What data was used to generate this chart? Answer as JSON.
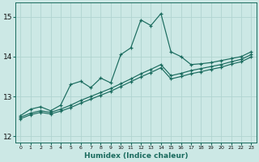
{
  "xlabel": "Humidex (Indice chaleur)",
  "xlim": [
    -0.5,
    23.5
  ],
  "ylim": [
    11.85,
    15.35
  ],
  "xticks": [
    0,
    1,
    2,
    3,
    4,
    5,
    6,
    7,
    8,
    9,
    10,
    11,
    12,
    13,
    14,
    15,
    16,
    17,
    18,
    19,
    20,
    21,
    22,
    23
  ],
  "yticks": [
    12,
    13,
    14,
    15
  ],
  "bg_color": "#cce8e5",
  "line_color": "#1a6b5e",
  "grid_color": "#b0d4d0",
  "line1_x": [
    0,
    1,
    2,
    3,
    4,
    5,
    6,
    7,
    8,
    9,
    10,
    11,
    12,
    13,
    14,
    15,
    16,
    17,
    18,
    19,
    20,
    21,
    22,
    23
  ],
  "line1_y": [
    12.52,
    12.68,
    12.74,
    12.64,
    12.78,
    13.3,
    13.38,
    13.22,
    13.46,
    13.34,
    14.05,
    14.22,
    14.92,
    14.78,
    15.08,
    14.12,
    14.0,
    13.8,
    13.82,
    13.85,
    13.9,
    13.95,
    14.0,
    14.12
  ],
  "line2_x": [
    0,
    1,
    2,
    3,
    4,
    5,
    6,
    7,
    8,
    9,
    10,
    11,
    12,
    13,
    14,
    15,
    16,
    17,
    18,
    19,
    20,
    21,
    22,
    23
  ],
  "line2_y": [
    12.48,
    12.58,
    12.64,
    12.6,
    12.68,
    12.78,
    12.9,
    13.0,
    13.1,
    13.2,
    13.32,
    13.44,
    13.57,
    13.68,
    13.8,
    13.52,
    13.58,
    13.65,
    13.7,
    13.75,
    13.8,
    13.87,
    13.93,
    14.05
  ],
  "line3_x": [
    0,
    1,
    2,
    3,
    4,
    5,
    6,
    7,
    8,
    9,
    10,
    11,
    12,
    13,
    14,
    15,
    16,
    17,
    18,
    19,
    20,
    21,
    22,
    23
  ],
  "line3_y": [
    12.44,
    12.54,
    12.6,
    12.56,
    12.63,
    12.72,
    12.83,
    12.93,
    13.03,
    13.13,
    13.25,
    13.37,
    13.49,
    13.6,
    13.72,
    13.44,
    13.5,
    13.57,
    13.62,
    13.68,
    13.73,
    13.81,
    13.87,
    13.99
  ]
}
